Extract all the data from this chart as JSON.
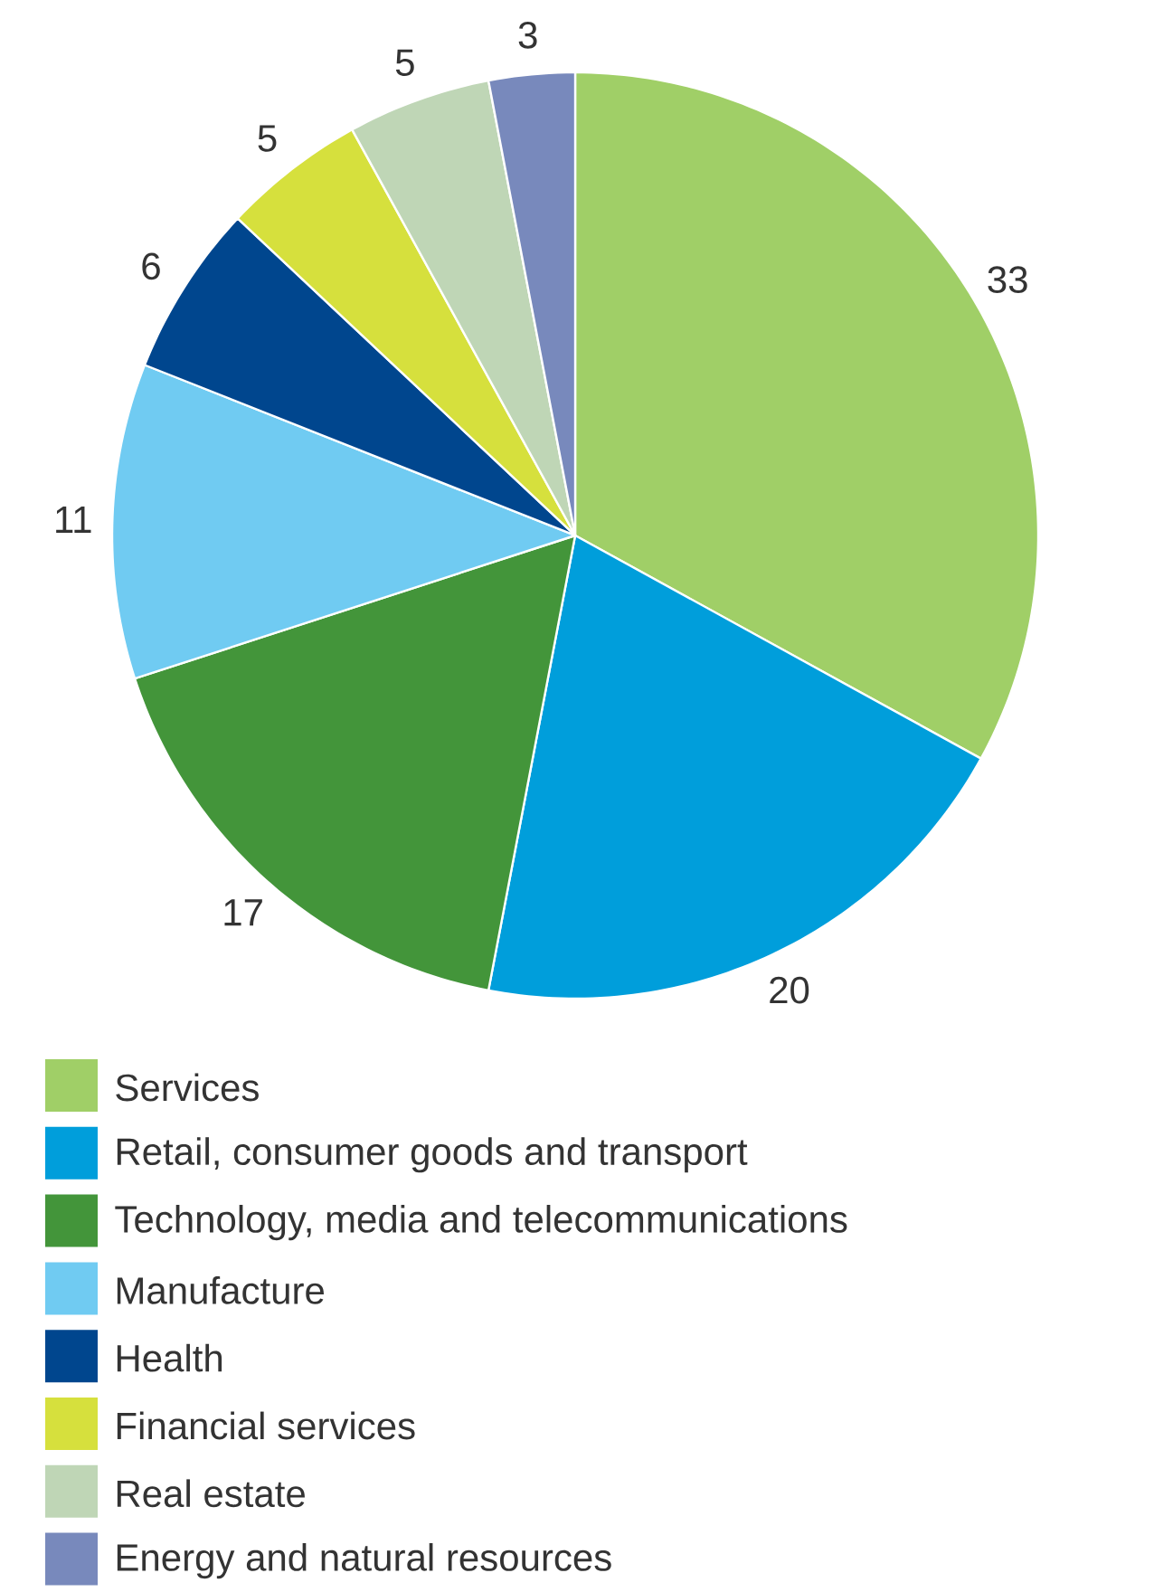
{
  "chart_data": {
    "type": "pie",
    "categories": [
      "Services",
      "Retail, consumer goods and transport",
      "Technology, media and telecommunications",
      "Manufacture",
      "Health",
      "Financial services",
      "Real estate",
      "Energy and natural resources"
    ],
    "values": [
      33,
      20,
      17,
      11,
      6,
      5,
      5,
      3
    ],
    "colors": [
      "#a0cf67",
      "#009edb",
      "#43953a",
      "#70cbf2",
      "#00468e",
      "#d6e03d",
      "#bfd6b6",
      "#7889bc"
    ],
    "data_labels": true,
    "legend": "bottom"
  }
}
